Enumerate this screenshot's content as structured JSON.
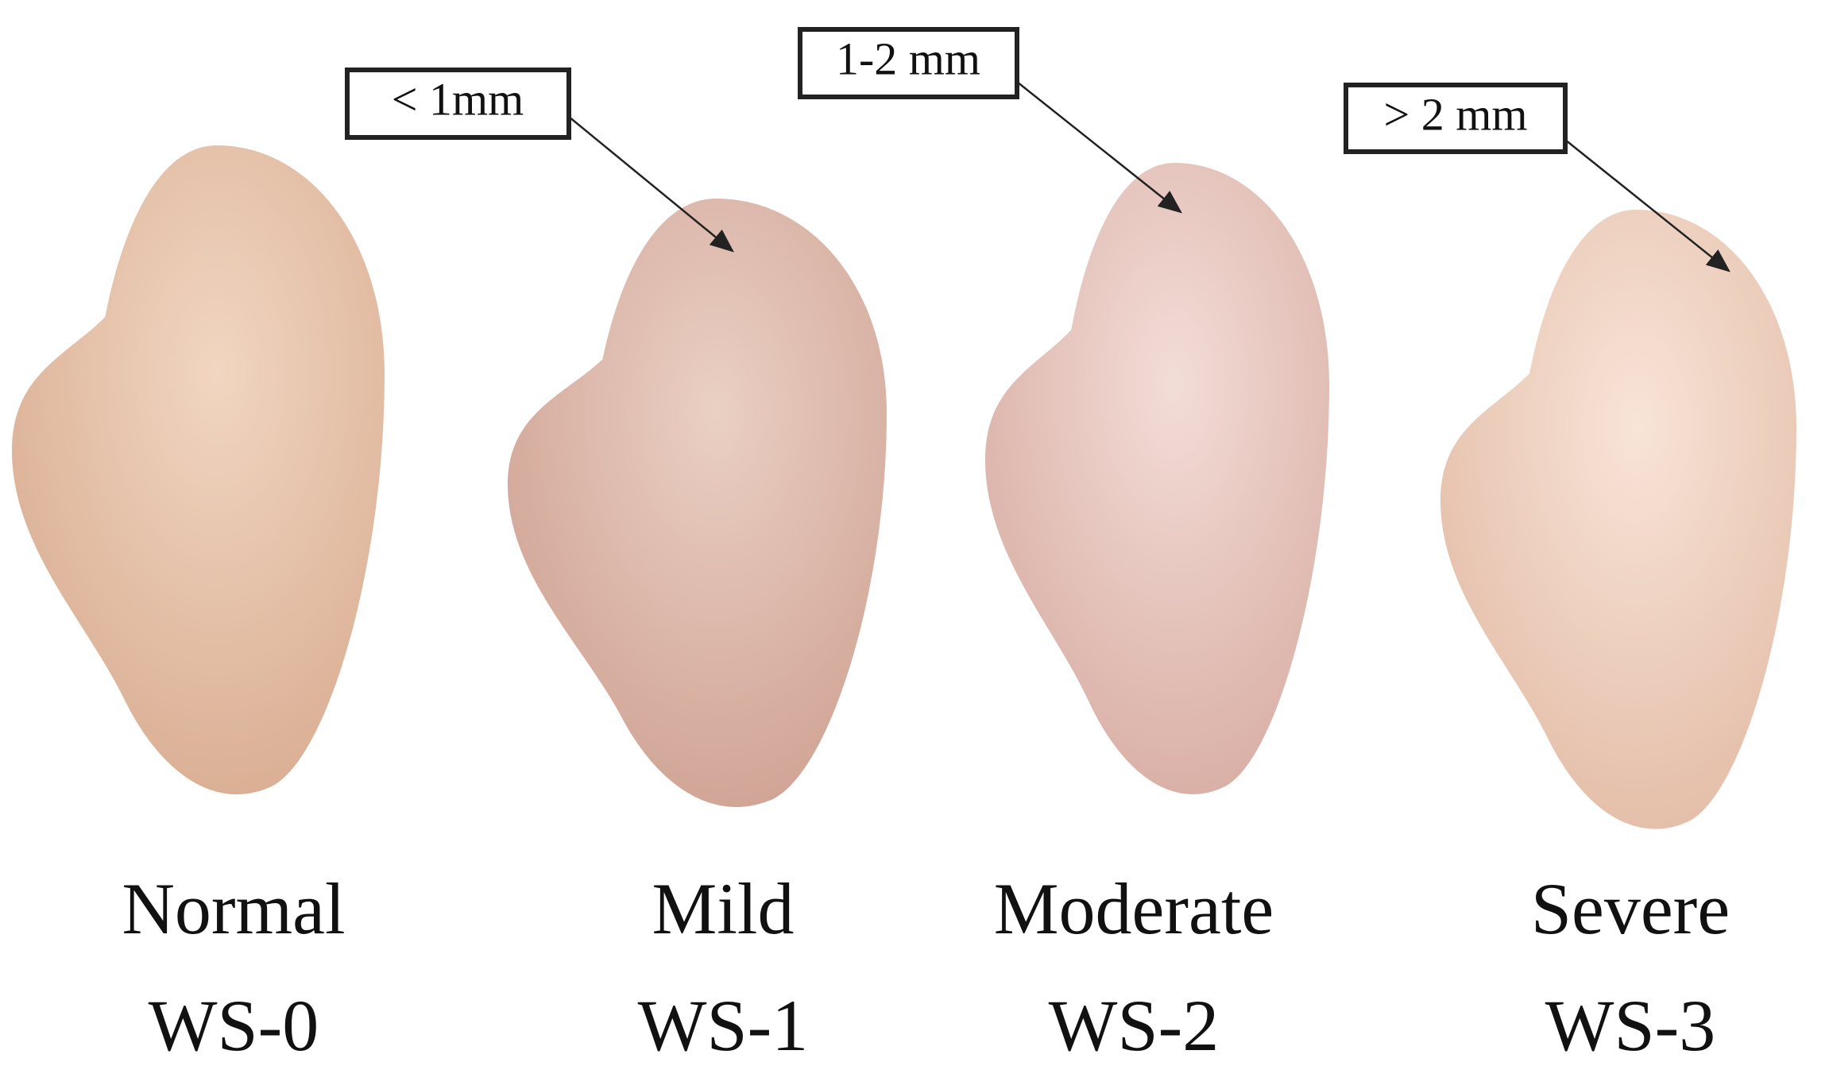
{
  "panels": [
    {
      "label": "Normal",
      "grade": "WS-0"
    },
    {
      "label": "Mild",
      "grade": "WS-1",
      "annotation": "< 1mm"
    },
    {
      "label": "Moderate",
      "grade": "WS-2",
      "annotation": "1-2 mm"
    },
    {
      "label": "Severe",
      "grade": "WS-3",
      "annotation": "> 2 mm"
    }
  ]
}
